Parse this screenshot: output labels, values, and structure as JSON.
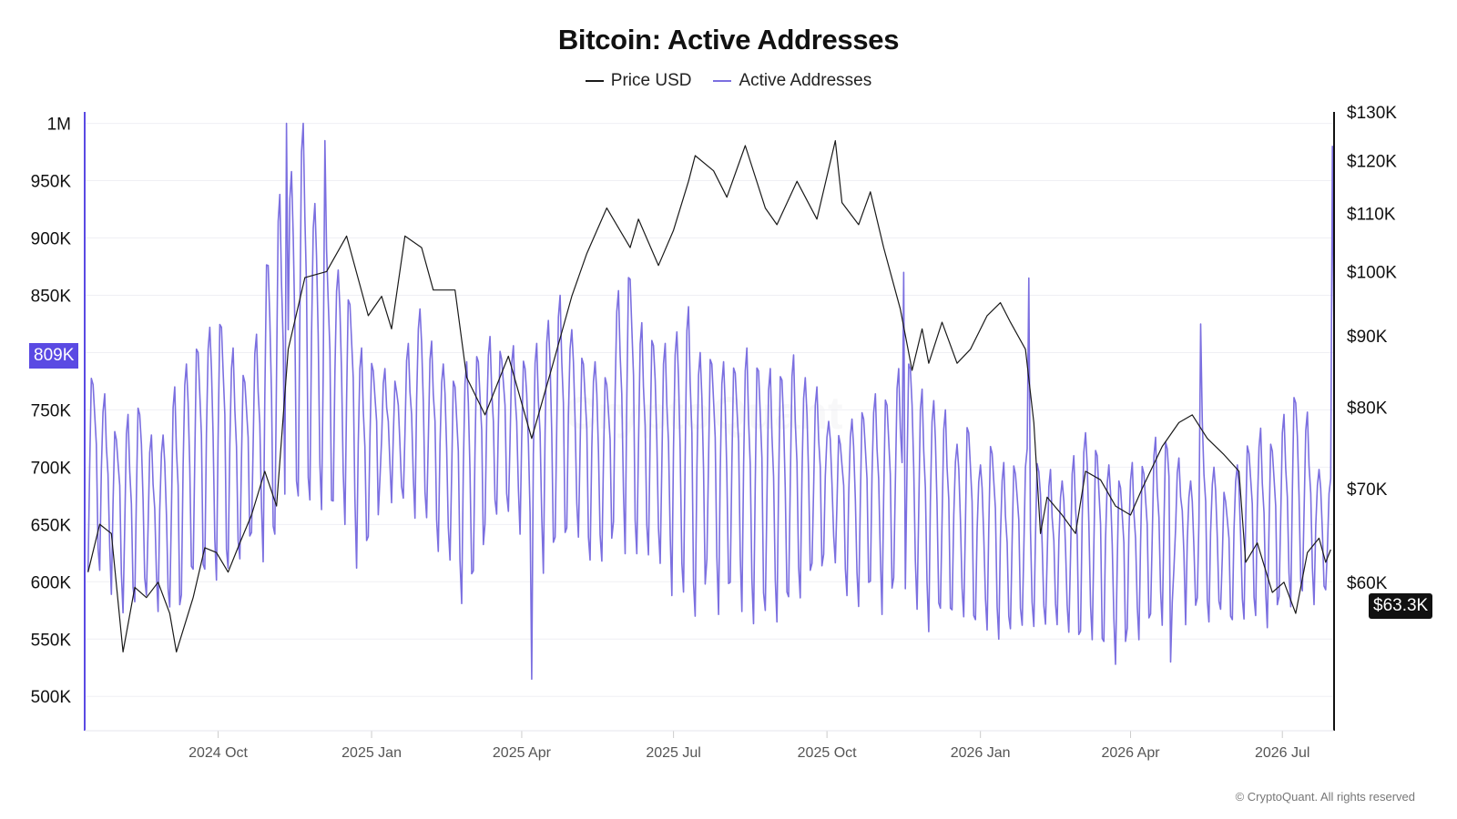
{
  "colors": {
    "price": "#1a1a1a",
    "addresses": "#7b6fe0",
    "badge_left": "#5a4ae3",
    "axis": "#111111",
    "grid": "#efeff4"
  },
  "chart_data": {
    "type": "line",
    "title": "Bitcoin: Active Addresses",
    "legend": {
      "placement": "top-center",
      "entries": [
        "Price USD",
        "Active Addresses"
      ]
    },
    "x_range": [
      "2024-07-13",
      "2026-08-01"
    ],
    "x_ticks": [
      {
        "date": "2024-10-01",
        "label": "2024 Oct"
      },
      {
        "date": "2025-01-01",
        "label": "2025 Jan"
      },
      {
        "date": "2025-04-01",
        "label": "2025 Apr"
      },
      {
        "date": "2025-07-01",
        "label": "2025 Jul"
      },
      {
        "date": "2025-10-01",
        "label": "2025 Oct"
      },
      {
        "date": "2026-01-01",
        "label": "2026 Jan"
      },
      {
        "date": "2026-04-01",
        "label": "2026 Apr"
      },
      {
        "date": "2026-07-01",
        "label": "2026 Jul"
      }
    ],
    "y_left": {
      "range": [
        470000,
        1010000
      ],
      "ticks": [
        {
          "value": 1000000,
          "label": "1M"
        },
        {
          "value": 950000,
          "label": "950K"
        },
        {
          "value": 900000,
          "label": "900K"
        },
        {
          "value": 850000,
          "label": "850K"
        },
        {
          "value": 800000,
          "label": "800K"
        },
        {
          "value": 750000,
          "label": "750K"
        },
        {
          "value": 700000,
          "label": "700K"
        },
        {
          "value": 650000,
          "label": "650K"
        },
        {
          "value": 600000,
          "label": "600K"
        },
        {
          "value": 550000,
          "label": "550K"
        },
        {
          "value": 500000,
          "label": "500K"
        }
      ],
      "current_label": "809K"
    },
    "y_right": {
      "scale": "log",
      "range": [
        47000,
        130000
      ],
      "ticks": [
        {
          "value": 130000,
          "label": "$130K"
        },
        {
          "value": 120000,
          "label": "$120K"
        },
        {
          "value": 110000,
          "label": "$110K"
        },
        {
          "value": 100000,
          "label": "$100K"
        },
        {
          "value": 90000,
          "label": "$90K"
        },
        {
          "value": 80000,
          "label": "$80K"
        },
        {
          "value": 70000,
          "label": "$70K"
        },
        {
          "value": 60000,
          "label": "$60K"
        }
      ],
      "current_label": "$63.3K"
    },
    "grid": true,
    "series": [
      {
        "name": "Price USD",
        "axis": "right",
        "points": [
          [
            "2024-07-15",
            61000
          ],
          [
            "2024-07-22",
            66000
          ],
          [
            "2024-07-29",
            65000
          ],
          [
            "2024-08-05",
            53500
          ],
          [
            "2024-08-12",
            59500
          ],
          [
            "2024-08-19",
            58500
          ],
          [
            "2024-08-26",
            60000
          ],
          [
            "2024-09-02",
            57000
          ],
          [
            "2024-09-06",
            53500
          ],
          [
            "2024-09-16",
            58500
          ],
          [
            "2024-09-23",
            63500
          ],
          [
            "2024-09-30",
            63000
          ],
          [
            "2024-10-07",
            61000
          ],
          [
            "2024-10-14",
            64000
          ],
          [
            "2024-10-21",
            67000
          ],
          [
            "2024-10-29",
            72000
          ],
          [
            "2024-11-05",
            68000
          ],
          [
            "2024-11-12",
            88000
          ],
          [
            "2024-11-22",
            99000
          ],
          [
            "2024-12-05",
            100000
          ],
          [
            "2024-12-17",
            106000
          ],
          [
            "2024-12-30",
            93000
          ],
          [
            "2025-01-07",
            96000
          ],
          [
            "2025-01-13",
            91000
          ],
          [
            "2025-01-21",
            106000
          ],
          [
            "2025-01-31",
            104000
          ],
          [
            "2025-02-07",
            97000
          ],
          [
            "2025-02-20",
            97000
          ],
          [
            "2025-02-27",
            84000
          ],
          [
            "2025-03-10",
            79000
          ],
          [
            "2025-03-24",
            87000
          ],
          [
            "2025-04-07",
            76000
          ],
          [
            "2025-04-21",
            87000
          ],
          [
            "2025-05-01",
            96000
          ],
          [
            "2025-05-10",
            103000
          ],
          [
            "2025-05-22",
            111000
          ],
          [
            "2025-06-05",
            104000
          ],
          [
            "2025-06-10",
            109000
          ],
          [
            "2025-06-22",
            101000
          ],
          [
            "2025-07-01",
            107000
          ],
          [
            "2025-07-10",
            116000
          ],
          [
            "2025-07-14",
            121000
          ],
          [
            "2025-07-25",
            118000
          ],
          [
            "2025-08-02",
            113000
          ],
          [
            "2025-08-13",
            123000
          ],
          [
            "2025-08-25",
            111000
          ],
          [
            "2025-09-01",
            108000
          ],
          [
            "2025-09-13",
            116000
          ],
          [
            "2025-09-25",
            109000
          ],
          [
            "2025-10-06",
            124000
          ],
          [
            "2025-10-10",
            112000
          ],
          [
            "2025-10-20",
            108000
          ],
          [
            "2025-10-27",
            114000
          ],
          [
            "2025-11-04",
            104000
          ],
          [
            "2025-11-14",
            94000
          ],
          [
            "2025-11-21",
            85000
          ],
          [
            "2025-11-27",
            91000
          ],
          [
            "2025-12-01",
            86000
          ],
          [
            "2025-12-09",
            92000
          ],
          [
            "2025-12-18",
            86000
          ],
          [
            "2025-12-26",
            88000
          ],
          [
            "2026-01-05",
            93000
          ],
          [
            "2026-01-13",
            95000
          ],
          [
            "2026-01-19",
            92000
          ],
          [
            "2026-01-28",
            88000
          ],
          [
            "2026-02-02",
            78000
          ],
          [
            "2026-02-06",
            65000
          ],
          [
            "2026-02-10",
            69000
          ],
          [
            "2026-02-19",
            67000
          ],
          [
            "2026-02-27",
            65000
          ],
          [
            "2026-03-05",
            72000
          ],
          [
            "2026-03-14",
            71000
          ],
          [
            "2026-03-23",
            68000
          ],
          [
            "2026-04-01",
            67000
          ],
          [
            "2026-04-08",
            70000
          ],
          [
            "2026-04-20",
            75000
          ],
          [
            "2026-04-30",
            78000
          ],
          [
            "2026-05-08",
            79000
          ],
          [
            "2026-05-17",
            76000
          ],
          [
            "2026-05-27",
            74000
          ],
          [
            "2026-06-05",
            72000
          ],
          [
            "2026-06-09",
            62000
          ],
          [
            "2026-06-16",
            64000
          ],
          [
            "2026-06-25",
            59000
          ],
          [
            "2026-07-02",
            60000
          ],
          [
            "2026-07-09",
            57000
          ],
          [
            "2026-07-16",
            63000
          ],
          [
            "2026-07-23",
            64500
          ],
          [
            "2026-07-27",
            62000
          ],
          [
            "2026-07-30",
            63300
          ]
        ]
      },
      {
        "name": "Active Addresses",
        "axis": "left",
        "start": "2024-07-15",
        "step_days": 1,
        "weekly_low": [
          610,
          600,
          590,
          560,
          580,
          575,
          570,
          560,
          580,
          590,
          600,
          600,
          600,
          620,
          630,
          610,
          620,
          640,
          650,
          660,
          640,
          660,
          650,
          600,
          640,
          680,
          670,
          660,
          650,
          640,
          620,
          600,
          570,
          610,
          640,
          660,
          650,
          640,
          620,
          600,
          620,
          640,
          620,
          610,
          620,
          640,
          620,
          610,
          620,
          600,
          580,
          570,
          560,
          600,
          560,
          600,
          560,
          560,
          560,
          560,
          570,
          580,
          600,
          620,
          600,
          580,
          580,
          590,
          570,
          590,
          590,
          560,
          550,
          560,
          570,
          550,
          560,
          560,
          540,
          560,
          550,
          560,
          550,
          560,
          540,
          550,
          530,
          540,
          530,
          550,
          550,
          560,
          560,
          600,
          560,
          570,
          560,
          560,
          560,
          570,
          560,
          560,
          575,
          575,
          578,
          578,
          580,
          585,
          585,
          590,
          600,
          600,
          600,
          600
        ],
        "weekly_high": [
          780,
          760,
          730,
          740,
          750,
          720,
          730,
          760,
          790,
          810,
          820,
          830,
          800,
          780,
          810,
          880,
          930,
          960,
          990,
          930,
          900,
          870,
          850,
          800,
          790,
          780,
          770,
          800,
          840,
          800,
          790,
          780,
          790,
          800,
          810,
          800,
          800,
          790,
          800,
          830,
          840,
          820,
          800,
          790,
          780,
          850,
          870,
          820,
          810,
          800,
          820,
          830,
          800,
          800,
          790,
          790,
          800,
          790,
          780,
          780,
          790,
          780,
          760,
          740,
          730,
          740,
          750,
          760,
          760,
          780,
          790,
          760,
          760,
          740,
          720,
          740,
          700,
          720,
          700,
          700,
          710,
          700,
          690,
          690,
          700,
          730,
          720,
          700,
          690,
          700,
          700,
          720,
          720,
          700,
          690,
          730,
          700,
          680,
          700,
          720,
          730,
          720,
          740,
          760,
          740,
          700,
          680,
          700,
          690,
          700,
          680,
          740,
          980,
          900
        ],
        "weekly_pattern": [
          0.05,
          0.55,
          0.95,
          1.0,
          0.8,
          0.6,
          0.15
        ],
        "notes_k": {
          "2024-11-11": 1000,
          "2024-12-04": 985,
          "2025-04-07": 515,
          "2025-11-16": 870,
          "2026-01-30": 865,
          "2026-04-25": 530,
          "2026-05-13": 825,
          "2026-07-31": 980,
          "2026-08-01": 809
        }
      }
    ]
  },
  "footer": {
    "copyright": "© CryptoQuant. All rights reserved",
    "watermark": "CryptoQuant"
  }
}
